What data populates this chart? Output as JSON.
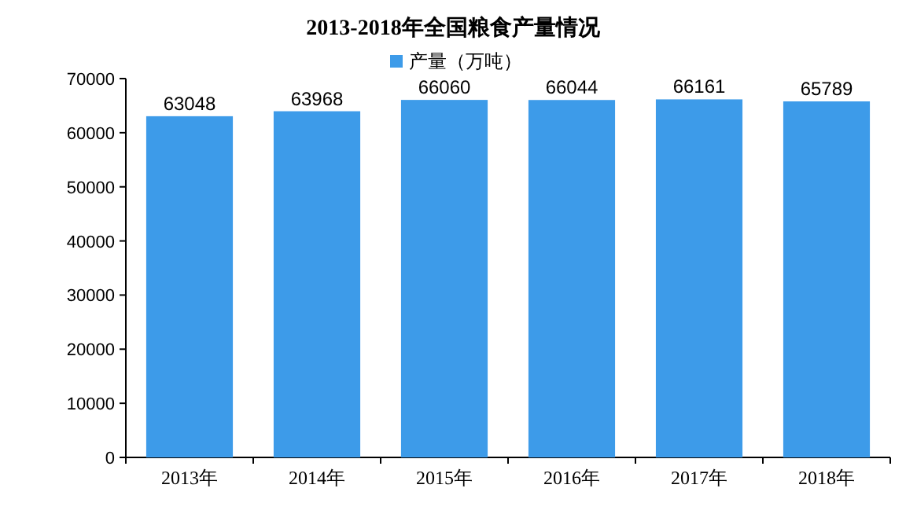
{
  "chart_data": {
    "type": "bar",
    "title": "2013-2018年全国粮食产量情况",
    "categories": [
      "2013年",
      "2014年",
      "2015年",
      "2016年",
      "2017年",
      "2018年"
    ],
    "series": [
      {
        "name": "产量（万吨）",
        "color": "#3d9be9",
        "values": [
          63048,
          63968,
          66060,
          66044,
          66161,
          65789
        ]
      }
    ],
    "ylim": [
      0,
      70000
    ],
    "yticks": [
      0,
      10000,
      20000,
      30000,
      40000,
      50000,
      60000,
      70000
    ],
    "data_labels": true,
    "legend": "top",
    "grid": false
  }
}
